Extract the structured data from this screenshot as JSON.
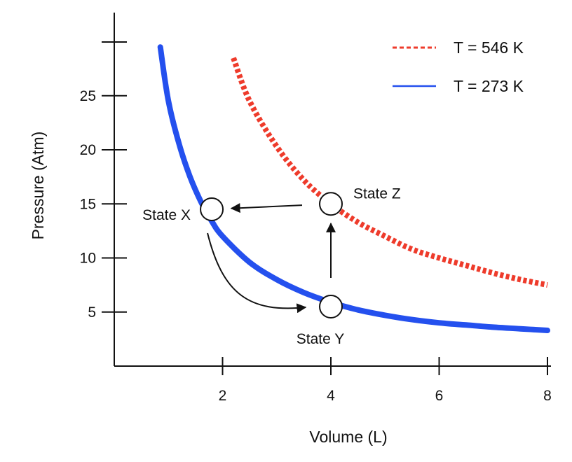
{
  "chart_data": {
    "type": "line",
    "title": "",
    "xlabel": "Volume (L)",
    "ylabel": "Pressure (Atm)",
    "xlim": [
      0,
      8
    ],
    "ylim": [
      0,
      30
    ],
    "x_ticks": [
      2,
      4,
      6,
      8
    ],
    "y_ticks": [
      5,
      10,
      15,
      20,
      25
    ],
    "grid": false,
    "legend_position": "top-right",
    "series": [
      {
        "name": "T = 546 K",
        "color": "#ee3b2b",
        "style": "dotted",
        "x": [
          2.2,
          2.5,
          3.0,
          3.5,
          4.0,
          4.5,
          5.0,
          5.5,
          6.0,
          6.5,
          7.0,
          7.5,
          8.0
        ],
        "y": [
          28.5,
          24.5,
          20.3,
          17.2,
          15.0,
          13.3,
          12.0,
          10.8,
          10.0,
          9.3,
          8.6,
          8.0,
          7.5
        ]
      },
      {
        "name": "T = 273 K",
        "color": "#2450ee",
        "style": "solid",
        "x": [
          0.85,
          1.0,
          1.2,
          1.4,
          1.6,
          1.8,
          2.0,
          2.5,
          3.0,
          3.5,
          4.0,
          4.5,
          5.0,
          5.5,
          6.0,
          6.5,
          7.0,
          7.5,
          8.0
        ],
        "y": [
          29.5,
          24.5,
          20.5,
          17.5,
          15.2,
          13.4,
          12.0,
          9.6,
          8.0,
          6.8,
          5.9,
          5.2,
          4.7,
          4.3,
          4.0,
          3.8,
          3.6,
          3.45,
          3.3
        ]
      }
    ],
    "states": [
      {
        "label": "State X",
        "x": 1.8,
        "y": 14.5,
        "label_side": "left"
      },
      {
        "label": "State Y",
        "x": 4.0,
        "y": 5.5,
        "label_side": "below"
      },
      {
        "label": "State Z",
        "x": 4.0,
        "y": 15.0,
        "label_side": "right"
      }
    ],
    "transitions": [
      {
        "from": "State X",
        "to": "State Y",
        "shape": "curve"
      },
      {
        "from": "State Y",
        "to": "State Z",
        "shape": "straight"
      },
      {
        "from": "State Z",
        "to": "State X",
        "shape": "straight"
      }
    ]
  }
}
